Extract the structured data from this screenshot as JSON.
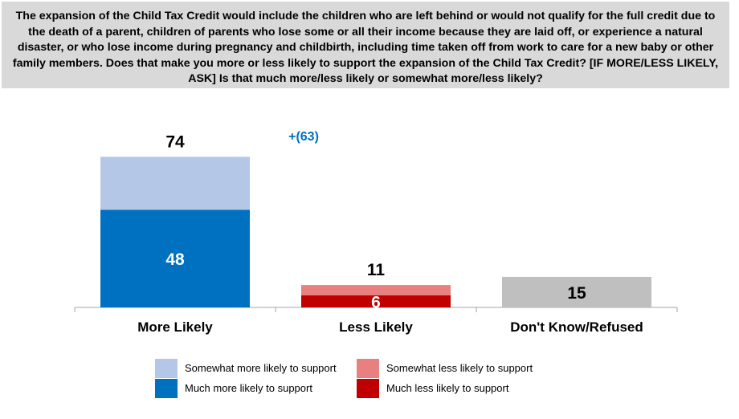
{
  "question": "The expansion of the Child Tax Credit would include the children who are left behind or would not qualify for the full credit due to the death of a parent, children of parents who lose some or all their income because they are laid off, or experience a natural disaster, or who lose income during pregnancy and childbirth, including time taken off from work to care for a new baby or other family members. Does that make you more or less likely to support the expansion of the Child Tax Credit? [IF MORE/LESS LIKELY, ASK] Is that much more/less likely or somewhat more/less likely?",
  "colors": {
    "somewhat_more": "#b4c7e7",
    "much_more": "#0070c0",
    "somewhat_less": "#e88080",
    "much_less": "#c00000",
    "dont_know": "#bfbfbf",
    "net_label": "#0070c0",
    "axis": "#a6a6a6"
  },
  "chart_data": {
    "type": "bar",
    "stacked": true,
    "categories": [
      "More Likely",
      "Less Likely",
      "Don't Know/Refused"
    ],
    "totals": [
      74,
      11,
      15
    ],
    "segments": [
      [
        {
          "key": "much_more",
          "value": 48,
          "label": "48"
        },
        {
          "key": "somewhat_more",
          "value": 26
        }
      ],
      [
        {
          "key": "much_less",
          "value": 6,
          "label": "6"
        },
        {
          "key": "somewhat_less",
          "value": 5
        }
      ],
      [
        {
          "key": "dont_know",
          "value": 15,
          "label": "15"
        }
      ]
    ],
    "net_annotation": "+(63)",
    "ylim": [
      0,
      80
    ],
    "legend": [
      {
        "key": "somewhat_more",
        "label": "Somewhat more likely to support"
      },
      {
        "key": "much_more",
        "label": "Much more likely to support"
      },
      {
        "key": "somewhat_less",
        "label": "Somewhat less likely to support"
      },
      {
        "key": "much_less",
        "label": "Much less likely to support"
      }
    ]
  }
}
